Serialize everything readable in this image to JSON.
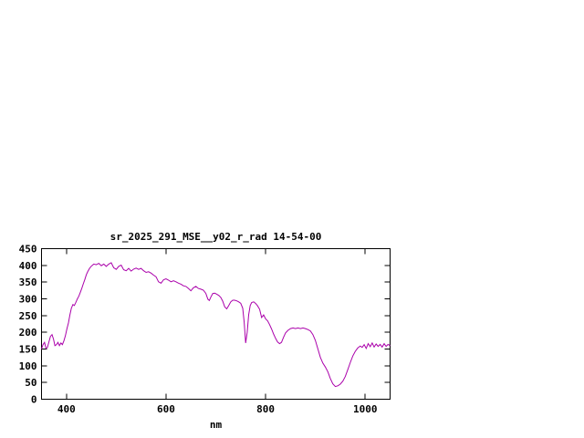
{
  "window": {
    "background": "#ffffff"
  },
  "chart_data": {
    "type": "line",
    "title": "sr_2025_291_MSE__y02_r_rad 14-54-00",
    "xlabel": "nm",
    "ylabel": "",
    "xlim": [
      350,
      1050
    ],
    "ylim": [
      0,
      450
    ],
    "x_ticks": [
      400,
      600,
      800,
      1000
    ],
    "y_ticks": [
      0,
      50,
      100,
      150,
      200,
      250,
      300,
      350,
      400,
      450
    ],
    "grid": false,
    "legend": "none",
    "axis_color": "#000000",
    "line_color": "#aa00aa",
    "series": [
      {
        "name": "sr_2025_291_MSE__y02_r_rad",
        "color": "#aa00aa",
        "points": [
          [
            350,
            150
          ],
          [
            353,
            163
          ],
          [
            356,
            170
          ],
          [
            359,
            152
          ],
          [
            362,
            155
          ],
          [
            365,
            172
          ],
          [
            368,
            188
          ],
          [
            371,
            193
          ],
          [
            374,
            180
          ],
          [
            377,
            160
          ],
          [
            380,
            163
          ],
          [
            383,
            170
          ],
          [
            386,
            160
          ],
          [
            389,
            168
          ],
          [
            392,
            163
          ],
          [
            395,
            175
          ],
          [
            398,
            190
          ],
          [
            401,
            210
          ],
          [
            404,
            228
          ],
          [
            407,
            252
          ],
          [
            410,
            272
          ],
          [
            413,
            283
          ],
          [
            416,
            280
          ],
          [
            419,
            290
          ],
          [
            422,
            300
          ],
          [
            425,
            308
          ],
          [
            428,
            320
          ],
          [
            431,
            332
          ],
          [
            434,
            345
          ],
          [
            437,
            358
          ],
          [
            440,
            372
          ],
          [
            443,
            382
          ],
          [
            446,
            390
          ],
          [
            449,
            396
          ],
          [
            452,
            400
          ],
          [
            455,
            404
          ],
          [
            460,
            402
          ],
          [
            465,
            406
          ],
          [
            470,
            399
          ],
          [
            475,
            404
          ],
          [
            480,
            397
          ],
          [
            485,
            404
          ],
          [
            490,
            408
          ],
          [
            495,
            393
          ],
          [
            500,
            388
          ],
          [
            505,
            397
          ],
          [
            510,
            401
          ],
          [
            515,
            387
          ],
          [
            520,
            384
          ],
          [
            525,
            391
          ],
          [
            530,
            383
          ],
          [
            535,
            389
          ],
          [
            540,
            392
          ],
          [
            545,
            388
          ],
          [
            550,
            391
          ],
          [
            555,
            384
          ],
          [
            560,
            379
          ],
          [
            565,
            381
          ],
          [
            570,
            377
          ],
          [
            575,
            371
          ],
          [
            580,
            366
          ],
          [
            585,
            351
          ],
          [
            590,
            347
          ],
          [
            595,
            357
          ],
          [
            600,
            360
          ],
          [
            605,
            356
          ],
          [
            610,
            351
          ],
          [
            615,
            354
          ],
          [
            620,
            351
          ],
          [
            625,
            347
          ],
          [
            630,
            344
          ],
          [
            635,
            339
          ],
          [
            640,
            337
          ],
          [
            645,
            331
          ],
          [
            650,
            324
          ],
          [
            655,
            333
          ],
          [
            660,
            337
          ],
          [
            665,
            331
          ],
          [
            670,
            329
          ],
          [
            675,
            326
          ],
          [
            680,
            316
          ],
          [
            684,
            299
          ],
          [
            687,
            295
          ],
          [
            690,
            305
          ],
          [
            694,
            316
          ],
          [
            698,
            317
          ],
          [
            702,
            314
          ],
          [
            706,
            310
          ],
          [
            710,
            304
          ],
          [
            714,
            293
          ],
          [
            718,
            276
          ],
          [
            722,
            270
          ],
          [
            726,
            280
          ],
          [
            730,
            291
          ],
          [
            734,
            296
          ],
          [
            738,
            296
          ],
          [
            742,
            294
          ],
          [
            746,
            291
          ],
          [
            750,
            287
          ],
          [
            754,
            272
          ],
          [
            757,
            230
          ],
          [
            760,
            168
          ],
          [
            763,
            200
          ],
          [
            766,
            252
          ],
          [
            769,
            280
          ],
          [
            772,
            289
          ],
          [
            776,
            291
          ],
          [
            780,
            286
          ],
          [
            784,
            279
          ],
          [
            788,
            269
          ],
          [
            792,
            244
          ],
          [
            796,
            252
          ],
          [
            800,
            240
          ],
          [
            804,
            234
          ],
          [
            808,
            223
          ],
          [
            812,
            210
          ],
          [
            816,
            195
          ],
          [
            820,
            182
          ],
          [
            824,
            171
          ],
          [
            828,
            166
          ],
          [
            832,
            170
          ],
          [
            836,
            185
          ],
          [
            840,
            198
          ],
          [
            845,
            206
          ],
          [
            850,
            211
          ],
          [
            855,
            213
          ],
          [
            860,
            211
          ],
          [
            865,
            213
          ],
          [
            870,
            211
          ],
          [
            875,
            213
          ],
          [
            880,
            211
          ],
          [
            885,
            208
          ],
          [
            890,
            204
          ],
          [
            895,
            193
          ],
          [
            900,
            176
          ],
          [
            905,
            150
          ],
          [
            910,
            125
          ],
          [
            915,
            108
          ],
          [
            920,
            96
          ],
          [
            925,
            82
          ],
          [
            930,
            62
          ],
          [
            935,
            46
          ],
          [
            940,
            38
          ],
          [
            945,
            40
          ],
          [
            950,
            45
          ],
          [
            955,
            54
          ],
          [
            960,
            68
          ],
          [
            965,
            88
          ],
          [
            970,
            109
          ],
          [
            975,
            129
          ],
          [
            980,
            143
          ],
          [
            985,
            153
          ],
          [
            990,
            159
          ],
          [
            994,
            155
          ],
          [
            998,
            163
          ],
          [
            1002,
            152
          ],
          [
            1006,
            166
          ],
          [
            1010,
            157
          ],
          [
            1014,
            168
          ],
          [
            1018,
            156
          ],
          [
            1022,
            165
          ],
          [
            1026,
            158
          ],
          [
            1030,
            164
          ],
          [
            1034,
            156
          ],
          [
            1038,
            166
          ],
          [
            1042,
            158
          ],
          [
            1046,
            164
          ],
          [
            1050,
            160
          ]
        ]
      }
    ]
  }
}
